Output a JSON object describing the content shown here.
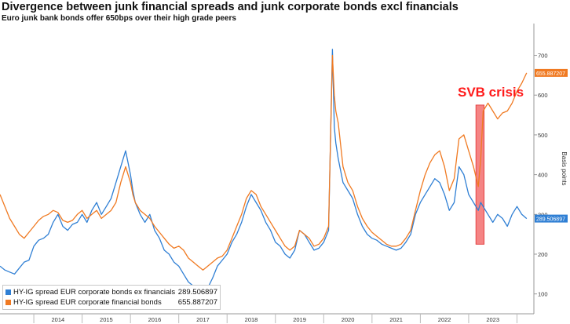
{
  "title": "Divergence between junk financial spreads and junk corporate bonds excl financials",
  "subtitle": "Euro junk bank bonds offer 650bps over their high grade peers",
  "annotation": "SVB crisis",
  "colors": {
    "blue": "#2f7fd4",
    "orange": "#f07a22",
    "annotation": "#ff1a1a",
    "highlight": "#f25b5b"
  },
  "legend": [
    {
      "label": "HY-IG spread EUR corporate bonds ex financials",
      "value": "289.506897"
    },
    {
      "label": "HY-IG spread EUR corporate financial bonds",
      "value": "655.887207"
    }
  ],
  "chart_data": {
    "type": "line",
    "ylabel": "Basis points",
    "y_axis_side": "right",
    "ylim": [
      50,
      780
    ],
    "yticks": [
      100,
      200,
      300,
      400,
      500,
      600,
      700
    ],
    "x_tick_labels": [
      "2014",
      "2015",
      "2016",
      "2017",
      "2018",
      "2019",
      "2020",
      "2021",
      "2022",
      "2023"
    ],
    "last_value_labels": [
      "655.887207",
      "289.506897"
    ],
    "highlight_band": {
      "label": "SVB crisis",
      "x_from": 2023.15,
      "x_to": 2023.32,
      "y_from": 225,
      "y_to": 575
    },
    "series": [
      {
        "name": "HY-IG spread EUR corporate bonds ex financials",
        "color": "#2f7fd4",
        "x": [
          2013.3,
          2013.4,
          2013.5,
          2013.6,
          2013.7,
          2013.8,
          2013.9,
          2014.0,
          2014.1,
          2014.2,
          2014.3,
          2014.4,
          2014.5,
          2014.6,
          2014.7,
          2014.8,
          2014.9,
          2015.0,
          2015.1,
          2015.2,
          2015.3,
          2015.4,
          2015.5,
          2015.6,
          2015.7,
          2015.8,
          2015.9,
          2016.0,
          2016.05,
          2016.1,
          2016.2,
          2016.3,
          2016.4,
          2016.5,
          2016.6,
          2016.7,
          2016.8,
          2016.9,
          2017.0,
          2017.1,
          2017.2,
          2017.3,
          2017.4,
          2017.5,
          2017.6,
          2017.7,
          2017.8,
          2017.9,
          2018.0,
          2018.1,
          2018.2,
          2018.3,
          2018.4,
          2018.5,
          2018.6,
          2018.7,
          2018.8,
          2018.9,
          2019.0,
          2019.1,
          2019.2,
          2019.3,
          2019.4,
          2019.5,
          2019.6,
          2019.7,
          2019.8,
          2019.9,
          2020.0,
          2020.1,
          2020.18,
          2020.22,
          2020.25,
          2020.3,
          2020.4,
          2020.5,
          2020.6,
          2020.7,
          2020.8,
          2020.9,
          2021.0,
          2021.1,
          2021.2,
          2021.3,
          2021.4,
          2021.5,
          2021.6,
          2021.7,
          2021.8,
          2021.9,
          2022.0,
          2022.1,
          2022.2,
          2022.3,
          2022.4,
          2022.5,
          2022.6,
          2022.7,
          2022.8,
          2022.9,
          2023.0,
          2023.1,
          2023.2,
          2023.25,
          2023.3,
          2023.4,
          2023.5,
          2023.6,
          2023.7,
          2023.8,
          2023.9,
          2024.0,
          2024.1,
          2024.2
        ],
        "values": [
          170,
          160,
          155,
          150,
          165,
          180,
          185,
          220,
          235,
          240,
          250,
          280,
          300,
          270,
          260,
          275,
          280,
          300,
          280,
          310,
          330,
          300,
          320,
          340,
          380,
          420,
          460,
          400,
          360,
          330,
          300,
          280,
          300,
          260,
          240,
          210,
          200,
          180,
          170,
          150,
          130,
          120,
          110,
          100,
          115,
          140,
          170,
          185,
          200,
          230,
          250,
          280,
          320,
          350,
          330,
          310,
          280,
          260,
          230,
          220,
          200,
          190,
          210,
          260,
          250,
          230,
          210,
          215,
          230,
          260,
          715,
          520,
          480,
          440,
          380,
          360,
          340,
          300,
          270,
          250,
          240,
          235,
          225,
          220,
          215,
          210,
          215,
          230,
          250,
          300,
          330,
          350,
          370,
          390,
          380,
          350,
          310,
          330,
          420,
          400,
          350,
          330,
          310,
          330,
          320,
          300,
          280,
          300,
          290,
          270,
          300,
          320,
          300,
          289.5
        ]
      },
      {
        "name": "HY-IG spread EUR corporate financial bonds",
        "color": "#f07a22",
        "x": [
          2013.3,
          2013.4,
          2013.5,
          2013.6,
          2013.7,
          2013.8,
          2013.9,
          2014.0,
          2014.1,
          2014.2,
          2014.3,
          2014.4,
          2014.5,
          2014.6,
          2014.7,
          2014.8,
          2014.9,
          2015.0,
          2015.1,
          2015.2,
          2015.3,
          2015.4,
          2015.5,
          2015.6,
          2015.7,
          2015.8,
          2015.9,
          2016.0,
          2016.05,
          2016.1,
          2016.2,
          2016.3,
          2016.4,
          2016.5,
          2016.6,
          2016.7,
          2016.8,
          2016.9,
          2017.0,
          2017.1,
          2017.2,
          2017.3,
          2017.4,
          2017.5,
          2017.6,
          2017.7,
          2017.8,
          2017.9,
          2018.0,
          2018.1,
          2018.2,
          2018.3,
          2018.4,
          2018.5,
          2018.6,
          2018.7,
          2018.8,
          2018.9,
          2019.0,
          2019.1,
          2019.2,
          2019.3,
          2019.4,
          2019.5,
          2019.6,
          2019.7,
          2019.8,
          2019.9,
          2020.0,
          2020.1,
          2020.18,
          2020.22,
          2020.25,
          2020.3,
          2020.4,
          2020.5,
          2020.6,
          2020.7,
          2020.8,
          2020.9,
          2021.0,
          2021.1,
          2021.2,
          2021.3,
          2021.4,
          2021.5,
          2021.6,
          2021.7,
          2021.8,
          2021.9,
          2022.0,
          2022.1,
          2022.2,
          2022.3,
          2022.4,
          2022.5,
          2022.6,
          2022.7,
          2022.8,
          2022.9,
          2023.0,
          2023.1,
          2023.2,
          2023.25,
          2023.3,
          2023.4,
          2023.5,
          2023.6,
          2023.7,
          2023.8,
          2023.9,
          2024.0,
          2024.1,
          2024.2
        ],
        "values": [
          350,
          320,
          290,
          270,
          250,
          240,
          255,
          270,
          285,
          295,
          300,
          310,
          305,
          285,
          280,
          285,
          300,
          310,
          290,
          300,
          310,
          290,
          300,
          310,
          330,
          380,
          420,
          380,
          350,
          330,
          310,
          300,
          290,
          270,
          255,
          240,
          225,
          215,
          220,
          210,
          190,
          180,
          170,
          160,
          170,
          180,
          190,
          195,
          210,
          240,
          270,
          300,
          340,
          360,
          350,
          320,
          300,
          280,
          260,
          240,
          220,
          210,
          220,
          260,
          250,
          240,
          220,
          225,
          240,
          270,
          700,
          600,
          560,
          530,
          420,
          380,
          360,
          320,
          290,
          270,
          255,
          245,
          235,
          225,
          220,
          220,
          225,
          240,
          260,
          310,
          360,
          400,
          430,
          450,
          460,
          420,
          360,
          390,
          490,
          500,
          460,
          420,
          370,
          440,
          560,
          580,
          560,
          540,
          555,
          560,
          580,
          610,
          630,
          655.9
        ]
      }
    ]
  }
}
